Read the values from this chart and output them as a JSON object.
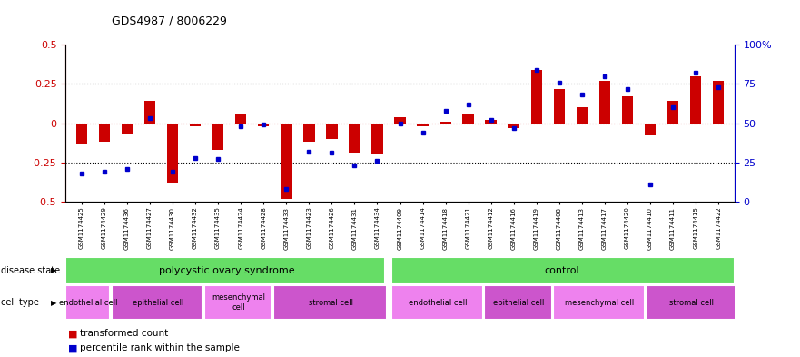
{
  "title": "GDS4987 / 8006229",
  "samples": [
    "GSM1174425",
    "GSM1174429",
    "GSM1174436",
    "GSM1174427",
    "GSM1174430",
    "GSM1174432",
    "GSM1174435",
    "GSM1174424",
    "GSM1174428",
    "GSM1174433",
    "GSM1174423",
    "GSM1174426",
    "GSM1174431",
    "GSM1174434",
    "GSM1174409",
    "GSM1174414",
    "GSM1174418",
    "GSM1174421",
    "GSM1174412",
    "GSM1174416",
    "GSM1174419",
    "GSM1174408",
    "GSM1174413",
    "GSM1174417",
    "GSM1174420",
    "GSM1174410",
    "GSM1174411",
    "GSM1174415",
    "GSM1174422"
  ],
  "bar_values": [
    -0.13,
    -0.12,
    -0.07,
    0.14,
    -0.38,
    -0.02,
    -0.17,
    0.06,
    -0.02,
    -0.48,
    -0.12,
    -0.1,
    -0.19,
    -0.2,
    0.04,
    -0.02,
    0.01,
    0.06,
    0.02,
    -0.03,
    0.34,
    0.22,
    0.1,
    0.27,
    0.17,
    -0.08,
    0.14,
    0.3,
    0.27
  ],
  "dot_values": [
    18,
    19,
    21,
    53,
    19,
    28,
    27,
    48,
    49,
    8,
    32,
    31,
    23,
    26,
    50,
    44,
    58,
    62,
    52,
    47,
    84,
    76,
    68,
    80,
    72,
    11,
    60,
    82,
    73
  ],
  "ylim_left": [
    -0.5,
    0.5
  ],
  "ylim_right": [
    0,
    100
  ],
  "yticks_left": [
    -0.5,
    -0.25,
    0,
    0.25,
    0.5
  ],
  "ytick_labels_left": [
    "-0.5",
    "-0.25",
    "0",
    "0.25",
    "0.5"
  ],
  "yticks_right": [
    0,
    25,
    50,
    75,
    100
  ],
  "ytick_labels_right": [
    "0",
    "25",
    "50",
    "75",
    "100%"
  ],
  "bar_color": "#cc0000",
  "dot_color": "#0000cc",
  "hline_red_color": "#cc0000",
  "hline_black_color": "#000000",
  "disease_state_pcos_label": "polycystic ovary syndrome",
  "disease_state_control_label": "control",
  "disease_state_color": "#66dd66",
  "cell_type_colors_alt": [
    "#ee82ee",
    "#cc55cc"
  ],
  "pcos_cell_counts": [
    2,
    4,
    3,
    5
  ],
  "pcos_cell_labels": [
    "endothelial cell",
    "epithelial cell",
    "mesenchymal\ncell",
    "stromal cell"
  ],
  "ctrl_cell_counts": [
    4,
    3,
    4,
    4
  ],
  "ctrl_cell_labels": [
    "endothelial cell",
    "epithelial cell",
    "mesenchymal cell",
    "stromal cell"
  ],
  "pcos_count": 14,
  "control_count": 15,
  "legend_bar_label": "transformed count",
  "legend_dot_label": "percentile rank within the sample",
  "n_samples": 29,
  "bg_color": "#ffffff"
}
